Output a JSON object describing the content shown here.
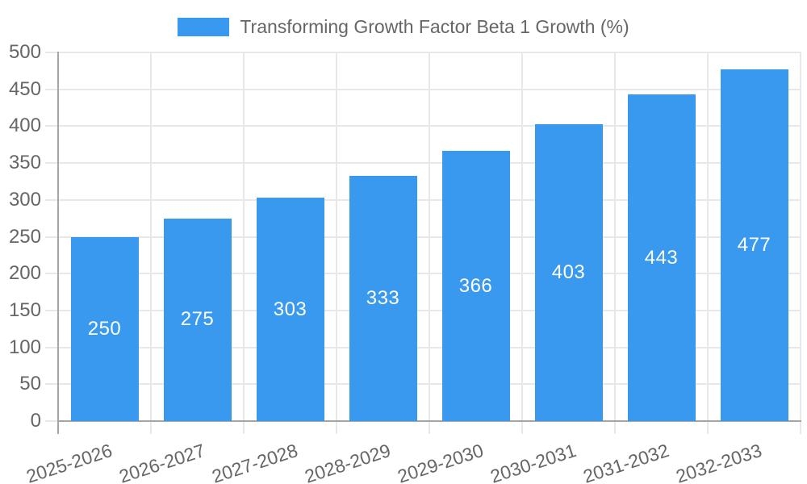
{
  "legend": {
    "label": "Transforming Growth Factor Beta 1 Growth (%)"
  },
  "chart_data": {
    "type": "bar",
    "title": "Transforming Growth Factor Beta 1 Growth (%)",
    "categories": [
      "2025-2026",
      "2026-2027",
      "2027-2028",
      "2028-2029",
      "2029-2030",
      "2030-2031",
      "2031-2032",
      "2032-2033"
    ],
    "values": [
      250,
      275,
      303,
      333,
      366,
      403,
      443,
      477
    ],
    "series_name": "Transforming Growth Factor Beta 1 Growth (%)",
    "value_labels": [
      "250",
      "275",
      "303",
      "333",
      "366",
      "403",
      "443",
      "477"
    ],
    "xlabel": "",
    "ylabel": "",
    "ylim": [
      0,
      500
    ],
    "ytick_step": 50,
    "yticks": [
      0,
      50,
      100,
      150,
      200,
      250,
      300,
      350,
      400,
      450,
      500
    ],
    "grid": true,
    "legend_position": "top",
    "x_label_rotation_deg": -18,
    "bar_color": "#3999EF",
    "value_label_color": "#FFFFFF",
    "axis_text_color": "#666666",
    "grid_color": "#E8E8E8",
    "axis_line_color": "#A5A5A5"
  }
}
